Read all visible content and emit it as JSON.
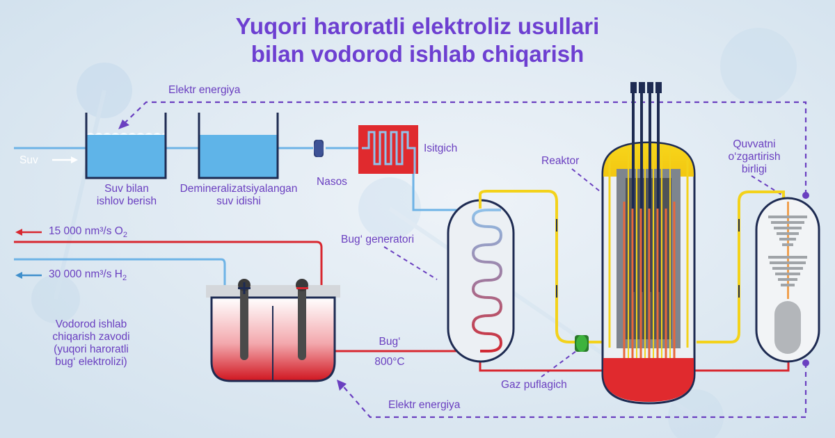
{
  "title": {
    "line1": "Yuqori haroratli elektroliz usullari",
    "line2": "bilan vodorod ishlab chiqarish"
  },
  "labels": {
    "elektr_top": "Elektr energiya",
    "elektr_bottom": "Elektr energiya",
    "suv": "Suv",
    "suv_bilan_1": "Suv bilan",
    "suv_bilan_2": "ishlov berish",
    "demin_1": "Demineralizatsiyalangan",
    "demin_2": "suv idishi",
    "nasos": "Nasos",
    "isitgich": "Isitgich",
    "reaktor": "Reaktor",
    "quvvat_1": "Quvvatni",
    "quvvat_2": "o‘zgartirish",
    "quvvat_3": "birligi",
    "bug_generatori": "Bug‘ generatori",
    "bug": "Bug‘",
    "bug_temp": "800°C",
    "gaz": "Gaz puflagich",
    "zavod_1": "Vodorod ishlab",
    "zavod_2": "chiqarish zavodi",
    "zavod_3": "(yuqori haroratli",
    "zavod_4": "bug‘ elektrolizi)"
  },
  "outputs": {
    "o2_value": "15 000 nm³/s O",
    "o2_sub": "2",
    "h2_value": "30 000 nm³/s H",
    "h2_sub": "2"
  },
  "colors": {
    "title": "#6d3fd1",
    "label": "#6a3fc0",
    "dashed": "#6a3fc0",
    "hot_line": "#d8272f",
    "cold_line": "#6db3e6",
    "coolant": "#f3d21b",
    "water": "#5fb4e8",
    "reactor_red": "#e02a2e"
  },
  "icons": {
    "plus": "plus-icon",
    "minus": "minus-icon",
    "arrow": "arrow-icon"
  }
}
